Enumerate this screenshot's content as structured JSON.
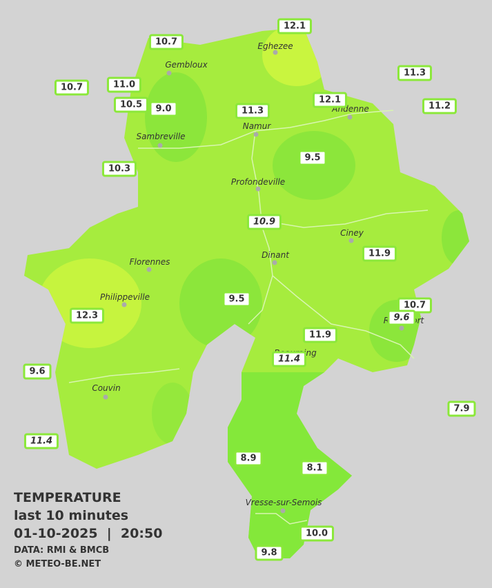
{
  "title": "TEMPERATURE",
  "subtitle": "last 10 minutes",
  "datetime": "01-10-2025  |  20:50",
  "source": "DATA: RMI & BMCB",
  "credit": "© METEO-BE.NET",
  "towns": [
    "Eghezee",
    "Gembloux",
    "Andenne",
    "Namur",
    "Sambreville",
    "Profondeville",
    "Ciney",
    "Dinant",
    "Florennes",
    "Philippeville",
    "Rochefort",
    "Beauraing",
    "Couvin",
    "Vresse-sur-Semois"
  ],
  "stations": [
    "12.1",
    "10.7",
    "11.3",
    "10.7",
    "11.0",
    "10.5",
    "9.0",
    "12.1",
    "11.3",
    "11.2",
    "10.3",
    "9.5",
    "10.9",
    "11.9",
    "9.5",
    "12.3",
    "10.7",
    "9.6",
    "11.9",
    "11.4",
    "9.6",
    "7.9",
    "11.4",
    "8.9",
    "8.1",
    "10.0",
    "9.8"
  ]
}
